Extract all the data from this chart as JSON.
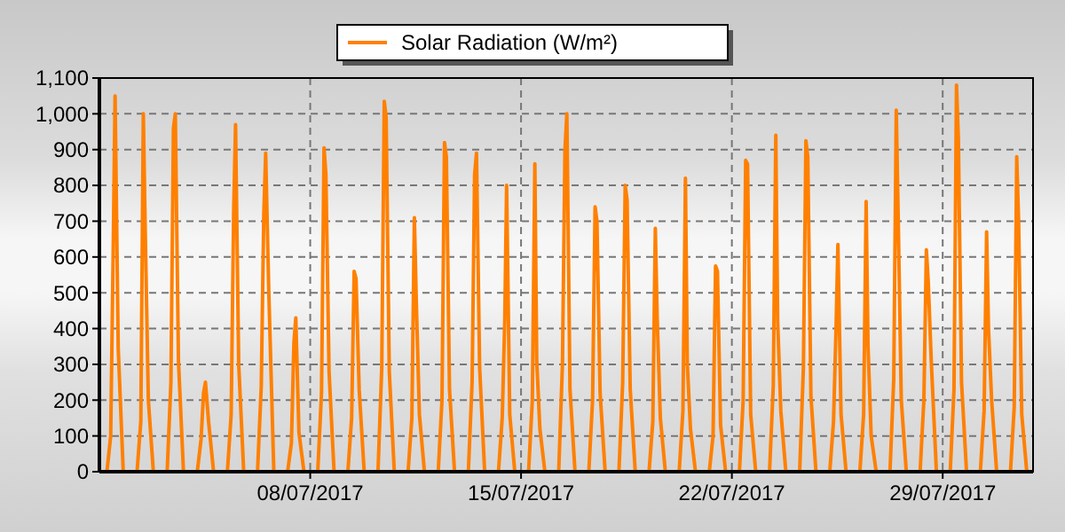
{
  "chart_data": {
    "type": "line",
    "x": [
      "2017-07-01T06:00",
      "2017-07-01T09:00",
      "2017-07-01T11:00",
      "2017-07-01T12:30",
      "2017-07-01T15:00",
      "2017-07-01T19:00",
      "2017-07-02T06:00",
      "2017-07-02T09:00",
      "2017-07-02T11:00",
      "2017-07-02T12:30",
      "2017-07-02T15:00",
      "2017-07-02T19:00",
      "2017-07-03T06:00",
      "2017-07-03T09:00",
      "2017-07-03T11:00",
      "2017-07-03T12:30",
      "2017-07-03T15:00",
      "2017-07-03T19:00",
      "2017-07-04T06:00",
      "2017-07-04T09:00",
      "2017-07-04T11:00",
      "2017-07-04T12:30",
      "2017-07-04T15:00",
      "2017-07-04T19:00",
      "2017-07-05T06:00",
      "2017-07-05T09:00",
      "2017-07-05T11:00",
      "2017-07-05T12:30",
      "2017-07-05T15:00",
      "2017-07-05T19:00",
      "2017-07-06T06:00",
      "2017-07-06T09:00",
      "2017-07-06T11:00",
      "2017-07-06T12:30",
      "2017-07-06T15:00",
      "2017-07-06T19:00",
      "2017-07-07T06:00",
      "2017-07-07T09:00",
      "2017-07-07T11:00",
      "2017-07-07T12:30",
      "2017-07-07T15:00",
      "2017-07-07T19:00",
      "2017-07-08T06:00",
      "2017-07-08T09:00",
      "2017-07-08T11:00",
      "2017-07-08T12:30",
      "2017-07-08T15:00",
      "2017-07-08T19:00",
      "2017-07-09T06:00",
      "2017-07-09T09:00",
      "2017-07-09T11:00",
      "2017-07-09T12:30",
      "2017-07-09T15:00",
      "2017-07-09T19:00",
      "2017-07-10T06:00",
      "2017-07-10T09:00",
      "2017-07-10T11:00",
      "2017-07-10T12:30",
      "2017-07-10T15:00",
      "2017-07-10T19:00",
      "2017-07-11T06:00",
      "2017-07-11T09:00",
      "2017-07-11T11:00",
      "2017-07-11T12:30",
      "2017-07-11T15:00",
      "2017-07-11T19:00",
      "2017-07-12T06:00",
      "2017-07-12T09:00",
      "2017-07-12T11:00",
      "2017-07-12T12:30",
      "2017-07-12T15:00",
      "2017-07-12T19:00",
      "2017-07-13T06:00",
      "2017-07-13T09:00",
      "2017-07-13T11:00",
      "2017-07-13T12:30",
      "2017-07-13T15:00",
      "2017-07-13T19:00",
      "2017-07-14T06:00",
      "2017-07-14T09:00",
      "2017-07-14T11:00",
      "2017-07-14T12:30",
      "2017-07-14T15:00",
      "2017-07-14T19:00",
      "2017-07-15T06:00",
      "2017-07-15T09:00",
      "2017-07-15T11:00",
      "2017-07-15T12:30",
      "2017-07-15T15:00",
      "2017-07-15T19:00",
      "2017-07-16T06:00",
      "2017-07-16T09:00",
      "2017-07-16T11:00",
      "2017-07-16T12:30",
      "2017-07-16T15:00",
      "2017-07-16T19:00",
      "2017-07-17T06:00",
      "2017-07-17T09:00",
      "2017-07-17T11:00",
      "2017-07-17T12:30",
      "2017-07-17T15:00",
      "2017-07-17T19:00",
      "2017-07-18T06:00",
      "2017-07-18T09:00",
      "2017-07-18T11:00",
      "2017-07-18T12:30",
      "2017-07-18T15:00",
      "2017-07-18T19:00",
      "2017-07-19T06:00",
      "2017-07-19T09:00",
      "2017-07-19T11:00",
      "2017-07-19T12:30",
      "2017-07-19T15:00",
      "2017-07-19T19:00",
      "2017-07-20T06:00",
      "2017-07-20T09:00",
      "2017-07-20T11:00",
      "2017-07-20T12:30",
      "2017-07-20T15:00",
      "2017-07-20T19:00",
      "2017-07-21T06:00",
      "2017-07-21T09:00",
      "2017-07-21T11:00",
      "2017-07-21T12:30",
      "2017-07-21T15:00",
      "2017-07-21T19:00",
      "2017-07-22T06:00",
      "2017-07-22T09:00",
      "2017-07-22T11:00",
      "2017-07-22T12:30",
      "2017-07-22T15:00",
      "2017-07-22T19:00",
      "2017-07-23T06:00",
      "2017-07-23T09:00",
      "2017-07-23T11:00",
      "2017-07-23T12:30",
      "2017-07-23T15:00",
      "2017-07-23T19:00",
      "2017-07-24T06:00",
      "2017-07-24T09:00",
      "2017-07-24T11:00",
      "2017-07-24T12:30",
      "2017-07-24T15:00",
      "2017-07-24T19:00",
      "2017-07-25T06:00",
      "2017-07-25T09:00",
      "2017-07-25T11:00",
      "2017-07-25T12:30",
      "2017-07-25T15:00",
      "2017-07-25T19:00",
      "2017-07-26T06:00",
      "2017-07-26T09:00",
      "2017-07-26T11:00",
      "2017-07-26T12:30",
      "2017-07-26T15:00",
      "2017-07-26T19:00",
      "2017-07-27T06:00",
      "2017-07-27T09:00",
      "2017-07-27T11:00",
      "2017-07-27T12:30",
      "2017-07-27T15:00",
      "2017-07-27T19:00",
      "2017-07-28T06:00",
      "2017-07-28T09:00",
      "2017-07-28T11:00",
      "2017-07-28T12:30",
      "2017-07-28T15:00",
      "2017-07-28T19:00",
      "2017-07-29T06:00",
      "2017-07-29T09:00",
      "2017-07-29T11:00",
      "2017-07-29T12:30",
      "2017-07-29T15:00",
      "2017-07-29T19:00",
      "2017-07-30T06:00",
      "2017-07-30T09:00",
      "2017-07-30T11:00",
      "2017-07-30T12:30",
      "2017-07-30T15:00",
      "2017-07-30T19:00",
      "2017-07-31T06:00",
      "2017-07-31T09:00",
      "2017-07-31T11:00",
      "2017-07-31T12:30",
      "2017-07-31T15:00",
      "2017-07-31T19:00"
    ],
    "series": [
      {
        "name": "Solar Radiation (W/m²)",
        "color": "#ff8000",
        "values": [
          0,
          100,
          620,
          1050,
          345,
          0,
          0,
          140,
          1000,
          680,
          200,
          0,
          0,
          250,
          960,
          1000,
          310,
          0,
          0,
          90,
          220,
          250,
          140,
          0,
          0,
          160,
          730,
          970,
          300,
          0,
          0,
          240,
          720,
          890,
          500,
          0,
          0,
          80,
          360,
          430,
          110,
          0,
          0,
          220,
          905,
          830,
          280,
          0,
          0,
          150,
          560,
          540,
          230,
          0,
          0,
          290,
          1035,
          990,
          280,
          0,
          0,
          150,
          710,
          480,
          160,
          0,
          0,
          200,
          920,
          880,
          230,
          0,
          0,
          250,
          830,
          890,
          290,
          0,
          0,
          150,
          420,
          800,
          160,
          0,
          0,
          200,
          860,
          310,
          120,
          0,
          0,
          300,
          900,
          1000,
          230,
          0,
          0,
          200,
          740,
          700,
          220,
          0,
          0,
          250,
          800,
          760,
          230,
          0,
          0,
          140,
          680,
          430,
          150,
          0,
          0,
          170,
          820,
          300,
          120,
          0,
          0,
          100,
          575,
          560,
          130,
          0,
          0,
          200,
          870,
          860,
          160,
          0,
          0,
          240,
          940,
          420,
          170,
          0,
          0,
          290,
          925,
          880,
          210,
          0,
          0,
          140,
          400,
          635,
          160,
          0,
          0,
          160,
          755,
          350,
          100,
          0,
          0,
          260,
          1010,
          720,
          200,
          0,
          0,
          200,
          620,
          530,
          300,
          0,
          0,
          230,
          1080,
          930,
          250,
          0,
          0,
          170,
          670,
          400,
          200,
          0,
          0,
          180,
          880,
          700,
          160,
          0
        ]
      }
    ],
    "xlim": [
      "2017-07-01T00:00",
      "2017-08-01T00:00"
    ],
    "xticks": [
      {
        "value": "2017-07-08",
        "label": "08/07/2017"
      },
      {
        "value": "2017-07-15",
        "label": "15/07/2017"
      },
      {
        "value": "2017-07-22",
        "label": "22/07/2017"
      },
      {
        "value": "2017-07-29",
        "label": "29/07/2017"
      }
    ],
    "ylim": [
      0,
      1100
    ],
    "yticks": [
      0,
      100,
      200,
      300,
      400,
      500,
      600,
      700,
      800,
      900,
      {
        "value": 1000,
        "label": "1,000"
      },
      {
        "value": 1100,
        "label": "1,100"
      }
    ],
    "grid": true,
    "legend": "top",
    "marker": "none",
    "line_style": "solid"
  }
}
